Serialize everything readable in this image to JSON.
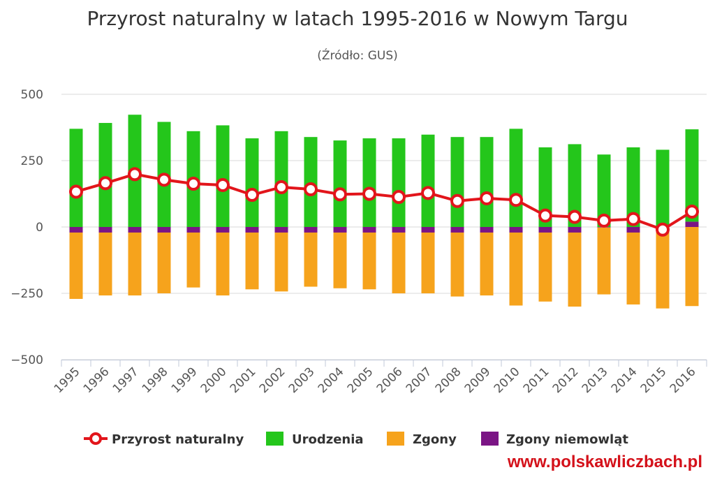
{
  "chart_data": {
    "type": "bar",
    "title": "Przyrost naturalny w latach 1995-2016 w Nowym Targu",
    "subtitle": "(Źródło: GUS)",
    "categories": [
      "1995",
      "1996",
      "1997",
      "1998",
      "1999",
      "2000",
      "2001",
      "2002",
      "2003",
      "2004",
      "2005",
      "2006",
      "2007",
      "2008",
      "2009",
      "2010",
      "2011",
      "2012",
      "2013",
      "2014",
      "2015",
      "2016"
    ],
    "ylim": [
      -500,
      500
    ],
    "yticks": [
      500,
      250,
      0,
      -250,
      -500
    ],
    "ytick_labels": [
      "500",
      "250",
      "0",
      "−250",
      "−500"
    ],
    "grid": true,
    "legend_position": "bottom",
    "series": [
      {
        "name": "Przyrost naturalny",
        "kind": "line",
        "color": "#e2151b",
        "values": [
          133,
          165,
          199,
          178,
          163,
          158,
          121,
          150,
          142,
          123,
          125,
          113,
          128,
          98,
          108,
          102,
          43,
          38,
          24,
          30,
          -10,
          58
        ]
      },
      {
        "name": "Urodzenia",
        "kind": "bar",
        "color": "#24c61b",
        "values": [
          370,
          392,
          423,
          396,
          361,
          383,
          334,
          361,
          339,
          326,
          334,
          334,
          348,
          339,
          339,
          370,
          300,
          312,
          273,
          300,
          291,
          348
        ]
      },
      {
        "name": "Zgony",
        "kind": "bar",
        "color": "#f6a31c",
        "values": [
          -250,
          -237,
          -237,
          -229,
          -207,
          -237,
          -214,
          -222,
          -204,
          -210,
          -214,
          -229,
          -229,
          -241,
          -237,
          -275,
          -260,
          -279,
          -252,
          -271,
          -302,
          -298
        ]
      },
      {
        "name": "Zgony niemowląt",
        "kind": "bar",
        "color": "#7b1585",
        "values": [
          -21,
          -21,
          -21,
          -21,
          -21,
          -21,
          -21,
          -21,
          -21,
          -21,
          -21,
          -21,
          -21,
          -21,
          -21,
          -21,
          -21,
          -21,
          -2,
          -21,
          -5,
          20
        ]
      }
    ]
  },
  "footer": {
    "url": "www.polskawliczbach.pl"
  }
}
